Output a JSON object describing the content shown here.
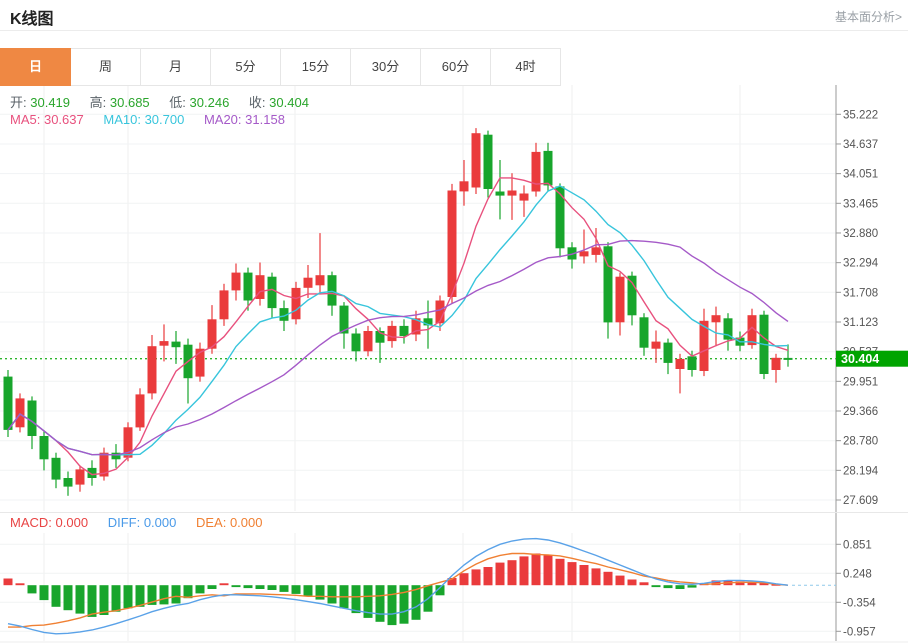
{
  "header": {
    "title": "K线图",
    "link": "基本面分析>"
  },
  "tabs": [
    {
      "label": "日",
      "active": true
    },
    {
      "label": "周",
      "active": false
    },
    {
      "label": "月",
      "active": false
    },
    {
      "label": "5分",
      "active": false
    },
    {
      "label": "15分",
      "active": false
    },
    {
      "label": "30分",
      "active": false
    },
    {
      "label": "60分",
      "active": false
    },
    {
      "label": "4时",
      "active": false
    }
  ],
  "legend_ohlc": [
    {
      "label": "开:",
      "value": "30.419"
    },
    {
      "label": "高:",
      "value": "30.685"
    },
    {
      "label": "低:",
      "value": "30.246"
    },
    {
      "label": "收:",
      "value": "30.404"
    }
  ],
  "legend_ma": [
    {
      "label": "MA5:",
      "value": "30.637",
      "color": "#e8517e"
    },
    {
      "label": "MA10:",
      "value": "30.700",
      "color": "#38c5dc"
    },
    {
      "label": "MA20:",
      "value": "31.158",
      "color": "#a55ac8"
    }
  ],
  "legend_macd": [
    {
      "label": "MACD:",
      "value": "0.000",
      "color": "#e84444"
    },
    {
      "label": "DIFF:",
      "value": "0.000",
      "color": "#4a9ae8"
    },
    {
      "label": "DEA:",
      "value": "0.000",
      "color": "#f08033"
    }
  ],
  "current_price": {
    "value": "30.404"
  },
  "colors": {
    "up": "#ea3b3c",
    "down": "#18a52c",
    "badge": "#00a400",
    "dotted_line": "#2db52d",
    "ma5": "#e8517e",
    "ma10": "#38c5dc",
    "ma20": "#a55ac8",
    "diff": "#5aa2e8",
    "dea": "#f08033",
    "active_tab": "#ef8843",
    "axis_text": "#555555",
    "grid": "#f1f3f4"
  },
  "chart_data": {
    "type": "candlestick+macd",
    "title": "K线图 (daily K-line with MACD)",
    "candle_format": "open,close,low,high",
    "up_means": "red (Chinese convention: close>=open)",
    "main_y_ticks": [
      "35.222",
      "34.637",
      "34.051",
      "33.465",
      "32.880",
      "32.294",
      "31.708",
      "31.123",
      "30.537",
      "29.951",
      "29.366",
      "28.780",
      "28.194",
      "27.609"
    ],
    "candles": [
      [
        30.05,
        29.0,
        28.86,
        30.18
      ],
      [
        29.05,
        29.62,
        28.95,
        29.72
      ],
      [
        29.58,
        28.88,
        28.62,
        29.66
      ],
      [
        28.88,
        28.42,
        28.2,
        28.98
      ],
      [
        28.45,
        28.02,
        27.85,
        28.55
      ],
      [
        28.05,
        27.88,
        27.7,
        28.18
      ],
      [
        27.92,
        28.22,
        27.78,
        28.3
      ],
      [
        28.25,
        28.05,
        27.9,
        28.4
      ],
      [
        28.08,
        28.55,
        28.0,
        28.65
      ],
      [
        28.55,
        28.42,
        28.25,
        28.72
      ],
      [
        28.45,
        29.05,
        28.38,
        29.15
      ],
      [
        29.05,
        29.7,
        28.98,
        29.82
      ],
      [
        29.72,
        30.65,
        29.6,
        30.87
      ],
      [
        30.66,
        30.75,
        30.35,
        31.08
      ],
      [
        30.74,
        30.63,
        30.3,
        30.95
      ],
      [
        30.68,
        30.02,
        29.52,
        30.8
      ],
      [
        30.05,
        30.6,
        29.95,
        30.72
      ],
      [
        30.6,
        31.18,
        30.5,
        31.46
      ],
      [
        31.18,
        31.75,
        31.05,
        31.88
      ],
      [
        31.75,
        32.1,
        31.55,
        32.28
      ],
      [
        32.1,
        31.55,
        31.35,
        32.2
      ],
      [
        31.58,
        32.05,
        31.45,
        32.3
      ],
      [
        32.02,
        31.4,
        31.2,
        32.1
      ],
      [
        31.4,
        31.15,
        30.95,
        31.55
      ],
      [
        31.18,
        31.8,
        31.08,
        31.92
      ],
      [
        31.8,
        32.0,
        31.6,
        32.25
      ],
      [
        31.85,
        32.05,
        31.7,
        32.88
      ],
      [
        32.05,
        31.45,
        31.25,
        32.12
      ],
      [
        31.45,
        30.9,
        30.6,
        31.52
      ],
      [
        30.9,
        30.55,
        30.35,
        31.0
      ],
      [
        30.55,
        30.95,
        30.45,
        31.05
      ],
      [
        30.95,
        30.72,
        30.32,
        31.02
      ],
      [
        30.75,
        31.05,
        30.62,
        31.15
      ],
      [
        31.05,
        30.85,
        30.7,
        31.18
      ],
      [
        30.88,
        31.2,
        30.75,
        31.35
      ],
      [
        31.2,
        31.06,
        30.6,
        31.55
      ],
      [
        31.1,
        31.55,
        30.95,
        31.65
      ],
      [
        31.62,
        33.72,
        31.5,
        33.85
      ],
      [
        33.7,
        33.9,
        33.42,
        34.32
      ],
      [
        33.78,
        34.85,
        33.65,
        34.95
      ],
      [
        34.82,
        33.75,
        33.58,
        34.9
      ],
      [
        33.7,
        33.62,
        33.15,
        34.32
      ],
      [
        33.62,
        33.72,
        33.14,
        34.06
      ],
      [
        33.52,
        33.66,
        33.2,
        33.82
      ],
      [
        33.7,
        34.48,
        33.6,
        34.66
      ],
      [
        34.5,
        33.82,
        33.7,
        34.66
      ],
      [
        33.8,
        32.58,
        32.4,
        33.86
      ],
      [
        32.6,
        32.36,
        32.18,
        32.7
      ],
      [
        32.42,
        32.52,
        32.28,
        32.95
      ],
      [
        32.45,
        32.6,
        32.3,
        32.98
      ],
      [
        32.62,
        31.12,
        30.8,
        32.7
      ],
      [
        31.12,
        32.02,
        30.86,
        32.1
      ],
      [
        32.04,
        31.26,
        31.06,
        32.12
      ],
      [
        31.22,
        30.62,
        30.46,
        31.3
      ],
      [
        30.6,
        30.74,
        30.32,
        30.96
      ],
      [
        30.72,
        30.32,
        30.1,
        30.8
      ],
      [
        30.2,
        30.4,
        29.72,
        30.5
      ],
      [
        30.45,
        30.18,
        30.05,
        30.56
      ],
      [
        30.16,
        31.15,
        30.06,
        31.39
      ],
      [
        31.12,
        31.26,
        30.65,
        31.43
      ],
      [
        31.2,
        30.78,
        30.56,
        31.3
      ],
      [
        30.82,
        30.66,
        30.55,
        30.94
      ],
      [
        30.67,
        31.26,
        30.6,
        31.39
      ],
      [
        31.27,
        30.1,
        30.0,
        31.35
      ],
      [
        30.18,
        30.42,
        29.93,
        30.5
      ],
      [
        30.419,
        30.404,
        30.246,
        30.685
      ]
    ],
    "ma_windows": [
      5,
      10,
      20
    ],
    "ma_latest": {
      "ma5": 30.637,
      "ma10": 30.7,
      "ma20": 31.158
    },
    "close_line": 30.404,
    "macd": {
      "y_ticks": [
        "0.851",
        "0.248",
        "-0.354",
        "-0.957"
      ],
      "latest": {
        "macd": 0.0,
        "diff": 0.0,
        "dea": 0.0
      },
      "hist": [
        0.14,
        0.04,
        -0.17,
        -0.31,
        -0.45,
        -0.52,
        -0.59,
        -0.66,
        -0.62,
        -0.55,
        -0.48,
        -0.45,
        -0.41,
        -0.4,
        -0.38,
        -0.27,
        -0.17,
        -0.08,
        0.04,
        -0.04,
        -0.06,
        -0.08,
        -0.1,
        -0.14,
        -0.18,
        -0.22,
        -0.3,
        -0.38,
        -0.48,
        -0.58,
        -0.68,
        -0.76,
        -0.83,
        -0.8,
        -0.72,
        -0.55,
        -0.21,
        0.15,
        0.25,
        0.33,
        0.38,
        0.47,
        0.52,
        0.6,
        0.66,
        0.62,
        0.55,
        0.48,
        0.42,
        0.35,
        0.28,
        0.2,
        0.12,
        0.06,
        -0.04,
        -0.06,
        -0.08,
        -0.05,
        0.04,
        0.1,
        0.1,
        0.08,
        0.06,
        0.05,
        0.02,
        0.0
      ],
      "diff": [
        -0.8,
        -0.85,
        -0.92,
        -0.98,
        -1.01,
        -1.0,
        -0.97,
        -0.93,
        -0.87,
        -0.8,
        -0.72,
        -0.64,
        -0.55,
        -0.48,
        -0.42,
        -0.38,
        -0.3,
        -0.24,
        -0.2,
        -0.2,
        -0.21,
        -0.22,
        -0.24,
        -0.27,
        -0.3,
        -0.34,
        -0.38,
        -0.43,
        -0.48,
        -0.53,
        -0.57,
        -0.6,
        -0.6,
        -0.55,
        -0.45,
        -0.28,
        -0.05,
        0.2,
        0.42,
        0.6,
        0.74,
        0.85,
        0.92,
        0.96,
        0.97,
        0.94,
        0.88,
        0.8,
        0.71,
        0.62,
        0.52,
        0.42,
        0.32,
        0.22,
        0.13,
        0.07,
        0.03,
        0.02,
        0.04,
        0.08,
        0.1,
        0.1,
        0.09,
        0.07,
        0.03,
        0.0
      ],
      "dea": [
        -0.87,
        -0.87,
        -0.84,
        -0.83,
        -0.79,
        -0.74,
        -0.68,
        -0.6,
        -0.56,
        -0.53,
        -0.48,
        -0.42,
        -0.35,
        -0.28,
        -0.23,
        -0.25,
        -0.22,
        -0.2,
        -0.22,
        -0.18,
        -0.18,
        -0.18,
        -0.19,
        -0.2,
        -0.21,
        -0.23,
        -0.23,
        -0.24,
        -0.24,
        -0.24,
        -0.23,
        -0.22,
        -0.19,
        -0.15,
        -0.09,
        -0.01,
        0.06,
        0.13,
        0.3,
        0.44,
        0.55,
        0.62,
        0.66,
        0.66,
        0.64,
        0.63,
        0.61,
        0.56,
        0.5,
        0.45,
        0.38,
        0.32,
        0.26,
        0.19,
        0.15,
        0.1,
        0.07,
        0.05,
        0.02,
        0.03,
        0.05,
        0.06,
        0.06,
        0.05,
        0.02,
        0.0
      ]
    }
  }
}
